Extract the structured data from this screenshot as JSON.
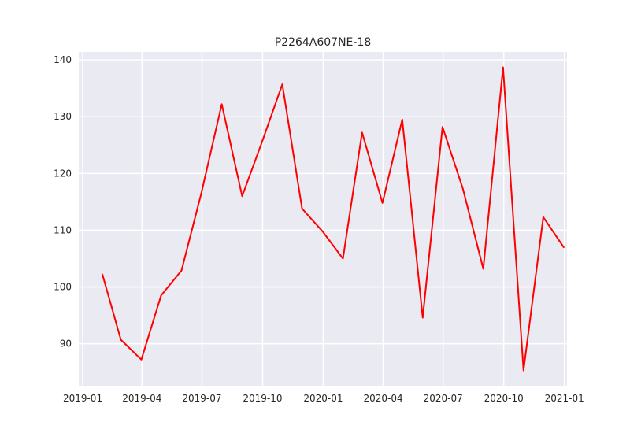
{
  "chart_data": {
    "type": "line",
    "title": "P2264A607NE-18",
    "xlabel": "",
    "ylabel": "",
    "x": [
      "2019-01-31",
      "2019-02-28",
      "2019-03-31",
      "2019-04-30",
      "2019-05-31",
      "2019-06-30",
      "2019-07-31",
      "2019-08-31",
      "2019-09-30",
      "2019-10-31",
      "2019-11-30",
      "2019-12-31",
      "2020-01-31",
      "2020-02-29",
      "2020-03-31",
      "2020-04-30",
      "2020-05-31",
      "2020-06-30",
      "2020-07-31",
      "2020-08-31",
      "2020-09-30",
      "2020-10-31",
      "2020-11-30",
      "2020-12-31"
    ],
    "series": [
      {
        "color": "#ff0000",
        "values": [
          102.2,
          90.7,
          87.2,
          98.5,
          102.9,
          116.5,
          132.2,
          116.0,
          125.5,
          135.7,
          113.8,
          109.8,
          105.0,
          127.2,
          114.8,
          129.5,
          94.6,
          128.2,
          117.3,
          103.2,
          138.7,
          85.3,
          112.3,
          107.0
        ]
      }
    ],
    "x_ticks": [
      "2019-01",
      "2019-04",
      "2019-07",
      "2019-10",
      "2020-01",
      "2020-04",
      "2020-07",
      "2020-10",
      "2021-01"
    ],
    "y_ticks": [
      90,
      100,
      110,
      120,
      130,
      140
    ],
    "xlim": [
      "2018-12-26",
      "2021-01-05"
    ],
    "ylim": [
      82.6,
      141.4
    ],
    "grid": true,
    "colors": {
      "background": "#eaeaf2",
      "grid": "#ffffff",
      "text": "#262626"
    }
  }
}
